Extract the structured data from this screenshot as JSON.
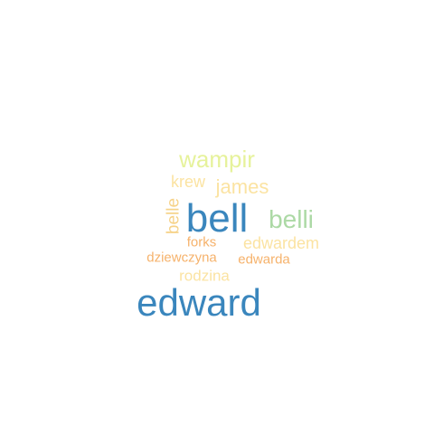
{
  "words": [
    {
      "text": "edward",
      "color": "#3a86bd"
    },
    {
      "text": "bell",
      "color": "#3a86bd"
    },
    {
      "text": "wampir",
      "color": "#e6f29b"
    },
    {
      "text": "belli",
      "color": "#acd9a5"
    },
    {
      "text": "james",
      "color": "#fbe3a2"
    },
    {
      "text": "krew",
      "color": "#fbe3a2"
    },
    {
      "text": "belle",
      "color": "#f6d288"
    },
    {
      "text": "edwardem",
      "color": "#fbe3a2"
    },
    {
      "text": "forks",
      "color": "#f6b26b"
    },
    {
      "text": "dziewczyna",
      "color": "#f6b26b"
    },
    {
      "text": "edwarda",
      "color": "#f6b26b"
    },
    {
      "text": "rodzina",
      "color": "#fbe3a2"
    }
  ]
}
